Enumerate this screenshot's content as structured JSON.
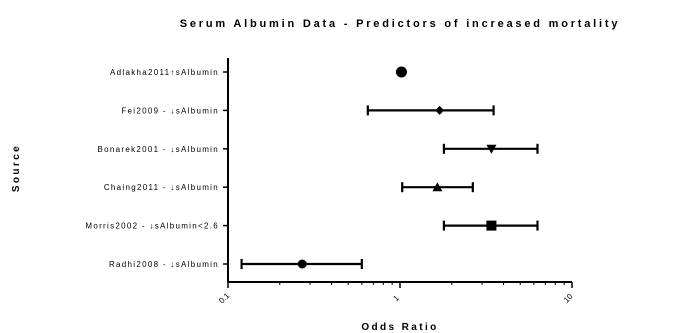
{
  "chart_data": {
    "type": "forest",
    "title": "Serum Albumin Data - Predictors of increased mortality",
    "xlabel": "Odds Ratio",
    "ylabel": "Source",
    "xscale": "log",
    "xlim": [
      0.1,
      10
    ],
    "xticks": [
      "0.1",
      "1",
      "10"
    ],
    "reference_line": 1,
    "rows": [
      {
        "label": "Adlakha2011↑sAlbumin",
        "or": 1.02,
        "lo": 1.02,
        "hi": 1.02,
        "marker": "circle"
      },
      {
        "label": "Fei2009 - ↓sAlbumin",
        "or": 1.7,
        "lo": 0.65,
        "hi": 3.5,
        "marker": "diamond"
      },
      {
        "label": "Bonarek2001 - ↓sAlbumin",
        "or": 3.4,
        "lo": 1.8,
        "hi": 6.3,
        "marker": "triangle-down"
      },
      {
        "label": "Chaing2011 - ↓sAlbumin",
        "or": 1.65,
        "lo": 1.03,
        "hi": 2.65,
        "marker": "triangle-up"
      },
      {
        "label": "Morris2002 - ↓sAlbumin<2.6",
        "or": 3.4,
        "lo": 1.8,
        "hi": 6.3,
        "marker": "square"
      },
      {
        "label": "Radhi2008 - ↓sAlbumin",
        "or": 0.27,
        "lo": 0.12,
        "hi": 0.6,
        "marker": "circle"
      }
    ]
  }
}
